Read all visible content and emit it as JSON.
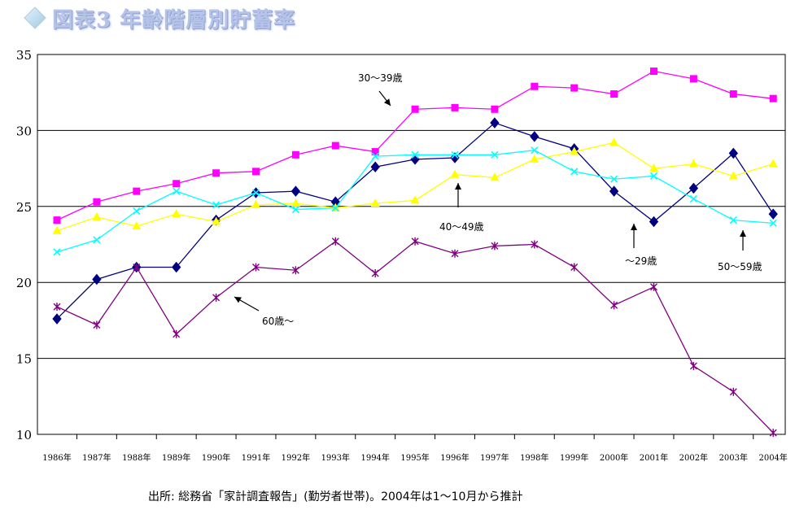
{
  "title": "図表3 年齢階層別貯蓄率",
  "footer": "出所: 総務省「家計調査報告」(勤労者世帯)。2004年は1～10月から推計",
  "chart_data": {
    "type": "line",
    "title": "図表3 年齢階層別貯蓄率",
    "categories": [
      "1986年",
      "1987年",
      "1988年",
      "1989年",
      "1990年",
      "1991年",
      "1992年",
      "1993年",
      "1994年",
      "1995年",
      "1996年",
      "1997年",
      "1998年",
      "1999年",
      "2000年",
      "2001年",
      "2002年",
      "2003年",
      "2004年"
    ],
    "ylim": [
      10,
      35
    ],
    "yticks": [
      10,
      15,
      20,
      25,
      30,
      35
    ],
    "grid": true,
    "series": [
      {
        "name": "～29歳",
        "color": "#000080",
        "marker": "diamond",
        "values": [
          17.6,
          20.2,
          21.0,
          21.0,
          24.1,
          25.9,
          26.0,
          25.3,
          27.6,
          28.1,
          28.2,
          30.5,
          29.6,
          28.8,
          26.0,
          24.0,
          26.2,
          28.5,
          24.5
        ]
      },
      {
        "name": "30～39歳",
        "color": "#ff00ff",
        "marker": "square",
        "values": [
          24.1,
          25.3,
          26.0,
          26.5,
          27.2,
          27.3,
          28.4,
          29.0,
          28.6,
          31.4,
          31.5,
          31.4,
          32.9,
          32.8,
          32.4,
          33.9,
          33.4,
          32.4,
          32.1
        ]
      },
      {
        "name": "40～49歳",
        "color": "#ffff00",
        "marker": "triangle",
        "values": [
          23.4,
          24.3,
          23.7,
          24.5,
          24.0,
          25.1,
          25.2,
          24.9,
          25.2,
          25.4,
          27.1,
          26.9,
          28.1,
          28.6,
          29.2,
          27.5,
          27.8,
          27.0,
          27.8
        ]
      },
      {
        "name": "50～59歳",
        "color": "#00ffff",
        "marker": "x",
        "values": [
          22.0,
          22.8,
          24.7,
          26.0,
          25.1,
          25.9,
          24.8,
          24.9,
          28.3,
          28.4,
          28.4,
          28.4,
          28.7,
          27.3,
          26.8,
          27.0,
          25.5,
          24.1,
          23.9
        ]
      },
      {
        "name": "60歳～",
        "color": "#800080",
        "marker": "star",
        "values": [
          18.4,
          17.2,
          21.0,
          16.6,
          19.0,
          21.0,
          20.8,
          22.7,
          20.6,
          22.7,
          21.9,
          22.4,
          22.5,
          21.0,
          18.5,
          19.7,
          14.5,
          12.8,
          10.1
        ]
      }
    ],
    "annotations": [
      {
        "label": "30～39歳",
        "series": "30～39歳"
      },
      {
        "label": "40～49歳",
        "series": "40～49歳"
      },
      {
        "label": "～29歳",
        "series": "～29歳"
      },
      {
        "label": "50～59歳",
        "series": "50～59歳"
      },
      {
        "label": "60歳～",
        "series": "60歳～"
      }
    ]
  }
}
